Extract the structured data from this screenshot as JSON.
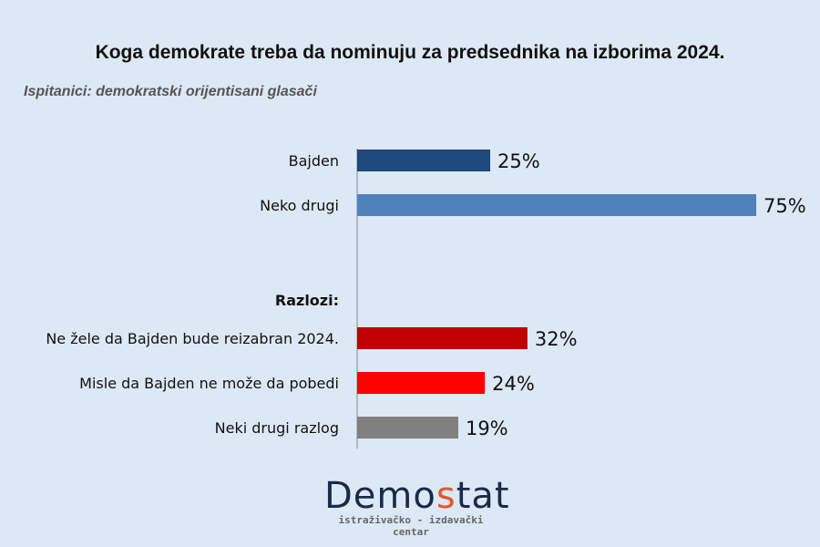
{
  "chart_data": {
    "type": "bar",
    "orientation": "horizontal",
    "title": "Koga demokrate treba da nominuju za predsednika na izborima 2024.",
    "subtitle": "Ispitanici: demokratski orijentisani glasači",
    "section_label": "Razlozi:",
    "xlim": [
      0,
      75
    ],
    "categories": [
      "Bajden",
      "Neko drugi",
      "Ne žele da Bajden bude reizabran 2024.",
      "Misle da Bajden ne može da pobedi",
      "Neki drugi razlog"
    ],
    "values": [
      25,
      75,
      32,
      24,
      19
    ],
    "value_labels": [
      "25%",
      "75%",
      "32%",
      "24%",
      "19%"
    ],
    "colors": [
      "#1f497d",
      "#4f81bd",
      "#c00000",
      "#ff0000",
      "#808080"
    ]
  },
  "logo": {
    "name_a": "Demo",
    "name_s": "s",
    "name_b": "tat",
    "tagline": "istraživačko - izdavački  centar"
  }
}
